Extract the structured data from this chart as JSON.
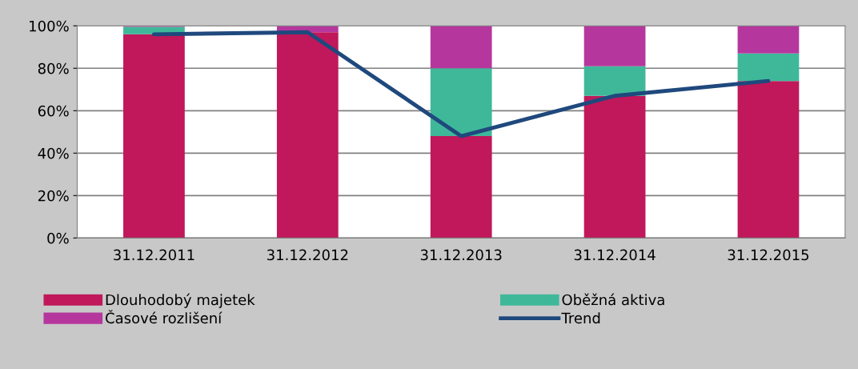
{
  "chart_data": {
    "type": "bar",
    "stacked": true,
    "categories": [
      "31.12.2011",
      "31.12.2012",
      "31.12.2013",
      "31.12.2014",
      "31.12.2015"
    ],
    "series": [
      {
        "name": "Dlouhodobý majetek",
        "color": "#c0185a",
        "values": [
          96,
          97,
          48,
          67,
          74
        ]
      },
      {
        "name": "Oběžná aktiva",
        "color": "#3fb89a",
        "values": [
          3.5,
          null,
          32,
          14,
          13
        ]
      },
      {
        "name": "Časové rozlišení",
        "color": "#b5379e",
        "values": [
          0.5,
          3,
          20,
          19,
          13
        ]
      },
      {
        "name": "Trend",
        "type": "line",
        "color": "#1f497d",
        "values": [
          96,
          97,
          48,
          67,
          74
        ]
      }
    ],
    "ylim": [
      0,
      100
    ],
    "yticks": [
      {
        "value": 0,
        "label": "0%"
      },
      {
        "value": 20,
        "label": "20%"
      },
      {
        "value": 40,
        "label": "40%"
      },
      {
        "value": 60,
        "label": "60%"
      },
      {
        "value": 80,
        "label": "80%"
      },
      {
        "value": 100,
        "label": "100%"
      }
    ],
    "grid": "y",
    "legend": "bottom"
  }
}
